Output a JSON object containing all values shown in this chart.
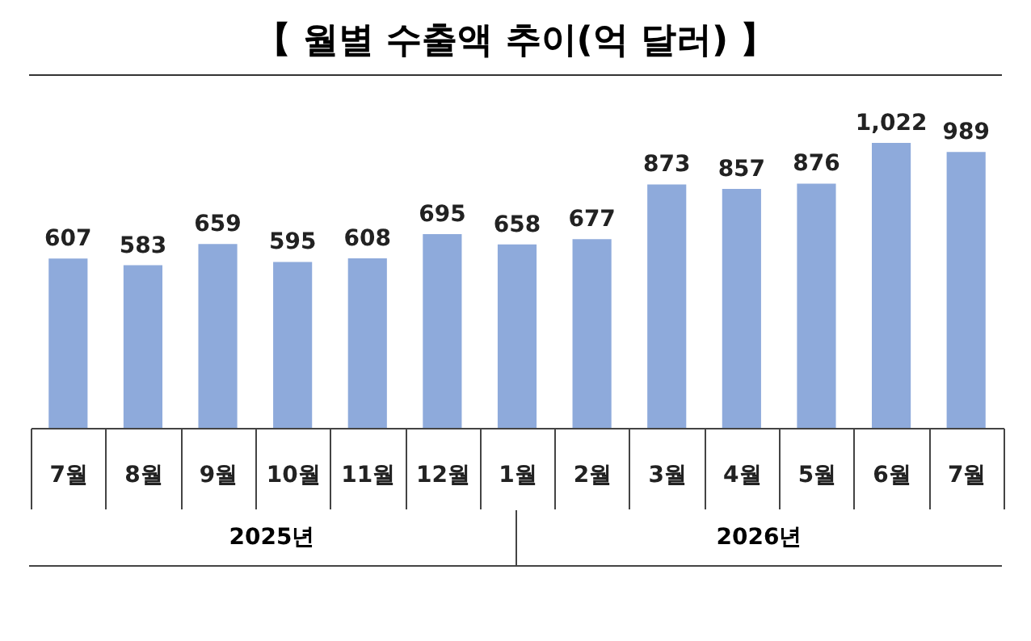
{
  "chart_data": {
    "type": "bar",
    "title": "【 월별 수출액 추이(억 달러) 】",
    "categories": [
      "7월",
      "8월",
      "9월",
      "10월",
      "11월",
      "12월",
      "1월",
      "2월",
      "3월",
      "4월",
      "5월",
      "6월",
      "7월"
    ],
    "values": [
      607,
      583,
      659,
      595,
      608,
      695,
      658,
      677,
      873,
      857,
      876,
      1022,
      989
    ],
    "value_labels": [
      "607",
      "583",
      "659",
      "595",
      "608",
      "695",
      "658",
      "677",
      "873",
      "857",
      "876",
      "1,022",
      "989"
    ],
    "color": "#8eaadb",
    "annotations": [
      "2025년",
      "2026년"
    ]
  }
}
